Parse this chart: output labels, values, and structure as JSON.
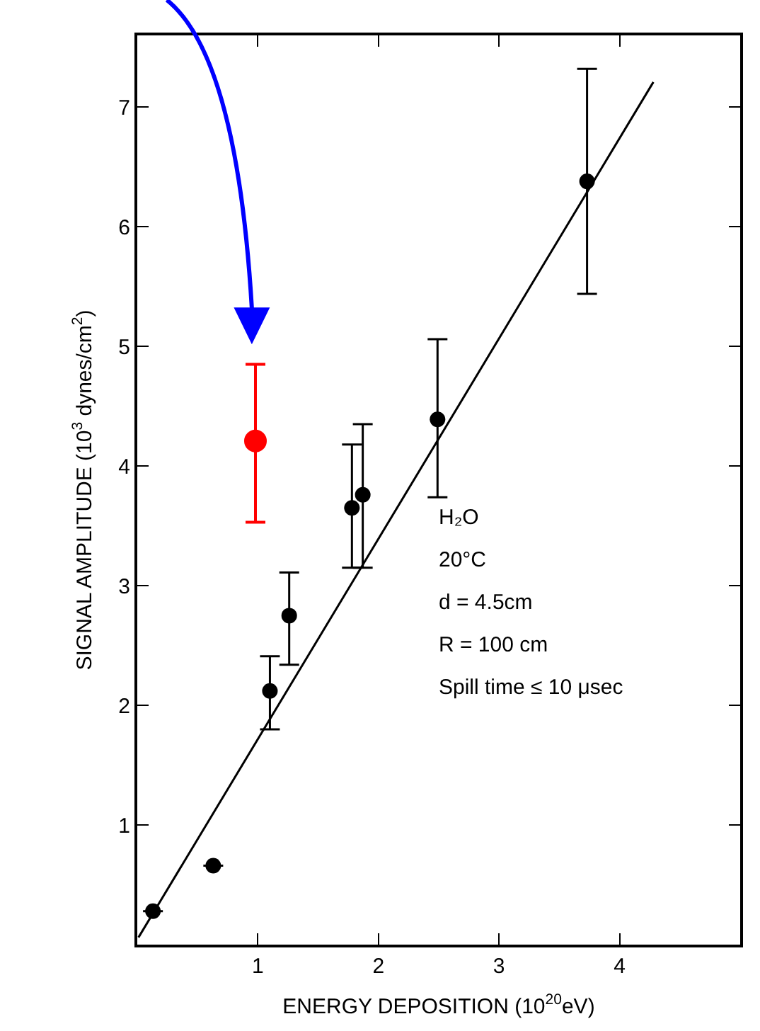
{
  "chart_data": {
    "type": "scatter",
    "xlabel": "ENERGY DEPOSITION (10$^{20}$eV)",
    "ylabel": "SIGNAL AMPLITUDE (10$^{3}$ dynes/cm$^{2}$)",
    "xlim": [
      0,
      5
    ],
    "ylim": [
      0,
      7.6
    ],
    "xticks": [
      1,
      2,
      3,
      4
    ],
    "yticks": [
      1,
      2,
      3,
      4,
      5,
      6,
      7
    ],
    "marker": "circle",
    "series": [
      {
        "color": "#000000",
        "x": [
          0.13,
          0.63,
          1.1,
          1.26,
          1.78,
          1.87,
          2.49,
          3.73
        ],
        "values": [
          0.28,
          0.66,
          2.12,
          2.75,
          3.65,
          3.76,
          4.39,
          6.38
        ],
        "errors": [
          null,
          null,
          [
            1.8,
            2.41
          ],
          [
            2.34,
            3.11
          ],
          [
            3.15,
            4.18
          ],
          [
            3.15,
            4.35
          ],
          [
            3.74,
            5.06
          ],
          [
            5.44,
            7.32
          ]
        ]
      },
      {
        "color": "#ff0000",
        "x": [
          0.98
        ],
        "values": [
          4.21
        ],
        "errors": [
          [
            3.53,
            4.85
          ]
        ]
      },
      {
        "type": "line",
        "color": "#000000",
        "x": [
          0.01,
          4.28
        ],
        "values": [
          0.06,
          7.21
        ],
        "line_style": "solid",
        "marker": "none"
      }
    ],
    "annotations": [
      "H₂O",
      "20°C",
      "d = 4.5cm",
      "R = 100 cm",
      "Spill time ≤ 10 μsec"
    ]
  }
}
